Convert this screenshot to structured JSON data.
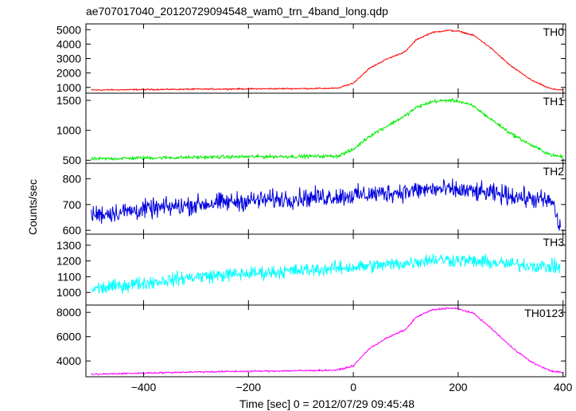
{
  "chart_data": {
    "type": "line",
    "title": "ae707017040_20120729094548_wam0_trn_4band_long.qdp",
    "xlabel": "Time [sec] 0 = 2012/07/29 09:45:48",
    "ylabel": "Counts/sec",
    "xlim": [
      -510,
      405
    ],
    "xticks": [
      -400,
      -200,
      0,
      200,
      400
    ],
    "panels": [
      {
        "name": "TH0",
        "color": "#ff0000",
        "ylim": [
          600,
          5400
        ],
        "yticks": [
          1000,
          2000,
          3000,
          4000,
          5000
        ],
        "noise": 40,
        "x": [
          -500,
          -400,
          -300,
          -200,
          -100,
          -30,
          0,
          30,
          60,
          100,
          120,
          150,
          180,
          200,
          230,
          260,
          300,
          340,
          370,
          380,
          400
        ],
        "y": [
          820,
          850,
          880,
          900,
          920,
          940,
          1300,
          2300,
          2900,
          3500,
          4300,
          4800,
          4950,
          4900,
          4600,
          3800,
          2500,
          1500,
          1000,
          880,
          830
        ]
      },
      {
        "name": "TH1",
        "color": "#00ee00",
        "ylim": [
          450,
          1620
        ],
        "yticks": [
          500,
          1000,
          1500
        ],
        "noise": 25,
        "x": [
          -500,
          -400,
          -300,
          -200,
          -100,
          -30,
          0,
          30,
          60,
          100,
          120,
          150,
          180,
          200,
          230,
          260,
          300,
          340,
          370,
          380,
          400
        ],
        "y": [
          520,
          540,
          550,
          560,
          565,
          570,
          680,
          900,
          1050,
          1250,
          1380,
          1480,
          1500,
          1490,
          1400,
          1200,
          950,
          750,
          620,
          580,
          560
        ]
      },
      {
        "name": "TH2",
        "color": "#0000dd",
        "ylim": [
          585,
          860
        ],
        "yticks": [
          600,
          700,
          800
        ],
        "noise": 30,
        "x": [
          -500,
          -400,
          -300,
          -200,
          -100,
          0,
          100,
          150,
          200,
          300,
          380,
          395
        ],
        "y": [
          660,
          680,
          700,
          715,
          725,
          735,
          750,
          760,
          755,
          735,
          710,
          600
        ]
      },
      {
        "name": "TH3",
        "color": "#00ffff",
        "ylim": [
          920,
          1370
        ],
        "yticks": [
          1000,
          1100,
          1200,
          1300
        ],
        "noise": 35,
        "x": [
          -500,
          -400,
          -300,
          -200,
          -100,
          0,
          100,
          150,
          200,
          300,
          395
        ],
        "y": [
          1020,
          1060,
          1100,
          1120,
          1140,
          1160,
          1185,
          1210,
          1205,
          1180,
          1160
        ]
      },
      {
        "name": "TH0123",
        "color": "#ff00ff",
        "ylim": [
          2700,
          8600
        ],
        "yticks": [
          4000,
          6000,
          8000
        ],
        "noise": 60,
        "x": [
          -500,
          -400,
          -300,
          -200,
          -100,
          -30,
          0,
          30,
          60,
          100,
          120,
          150,
          180,
          200,
          230,
          260,
          300,
          340,
          370,
          380,
          400
        ],
        "y": [
          2900,
          3000,
          3100,
          3150,
          3200,
          3250,
          3600,
          5000,
          5800,
          6600,
          7600,
          8200,
          8350,
          8300,
          7900,
          6800,
          5200,
          3900,
          3300,
          3150,
          3050
        ]
      }
    ]
  }
}
